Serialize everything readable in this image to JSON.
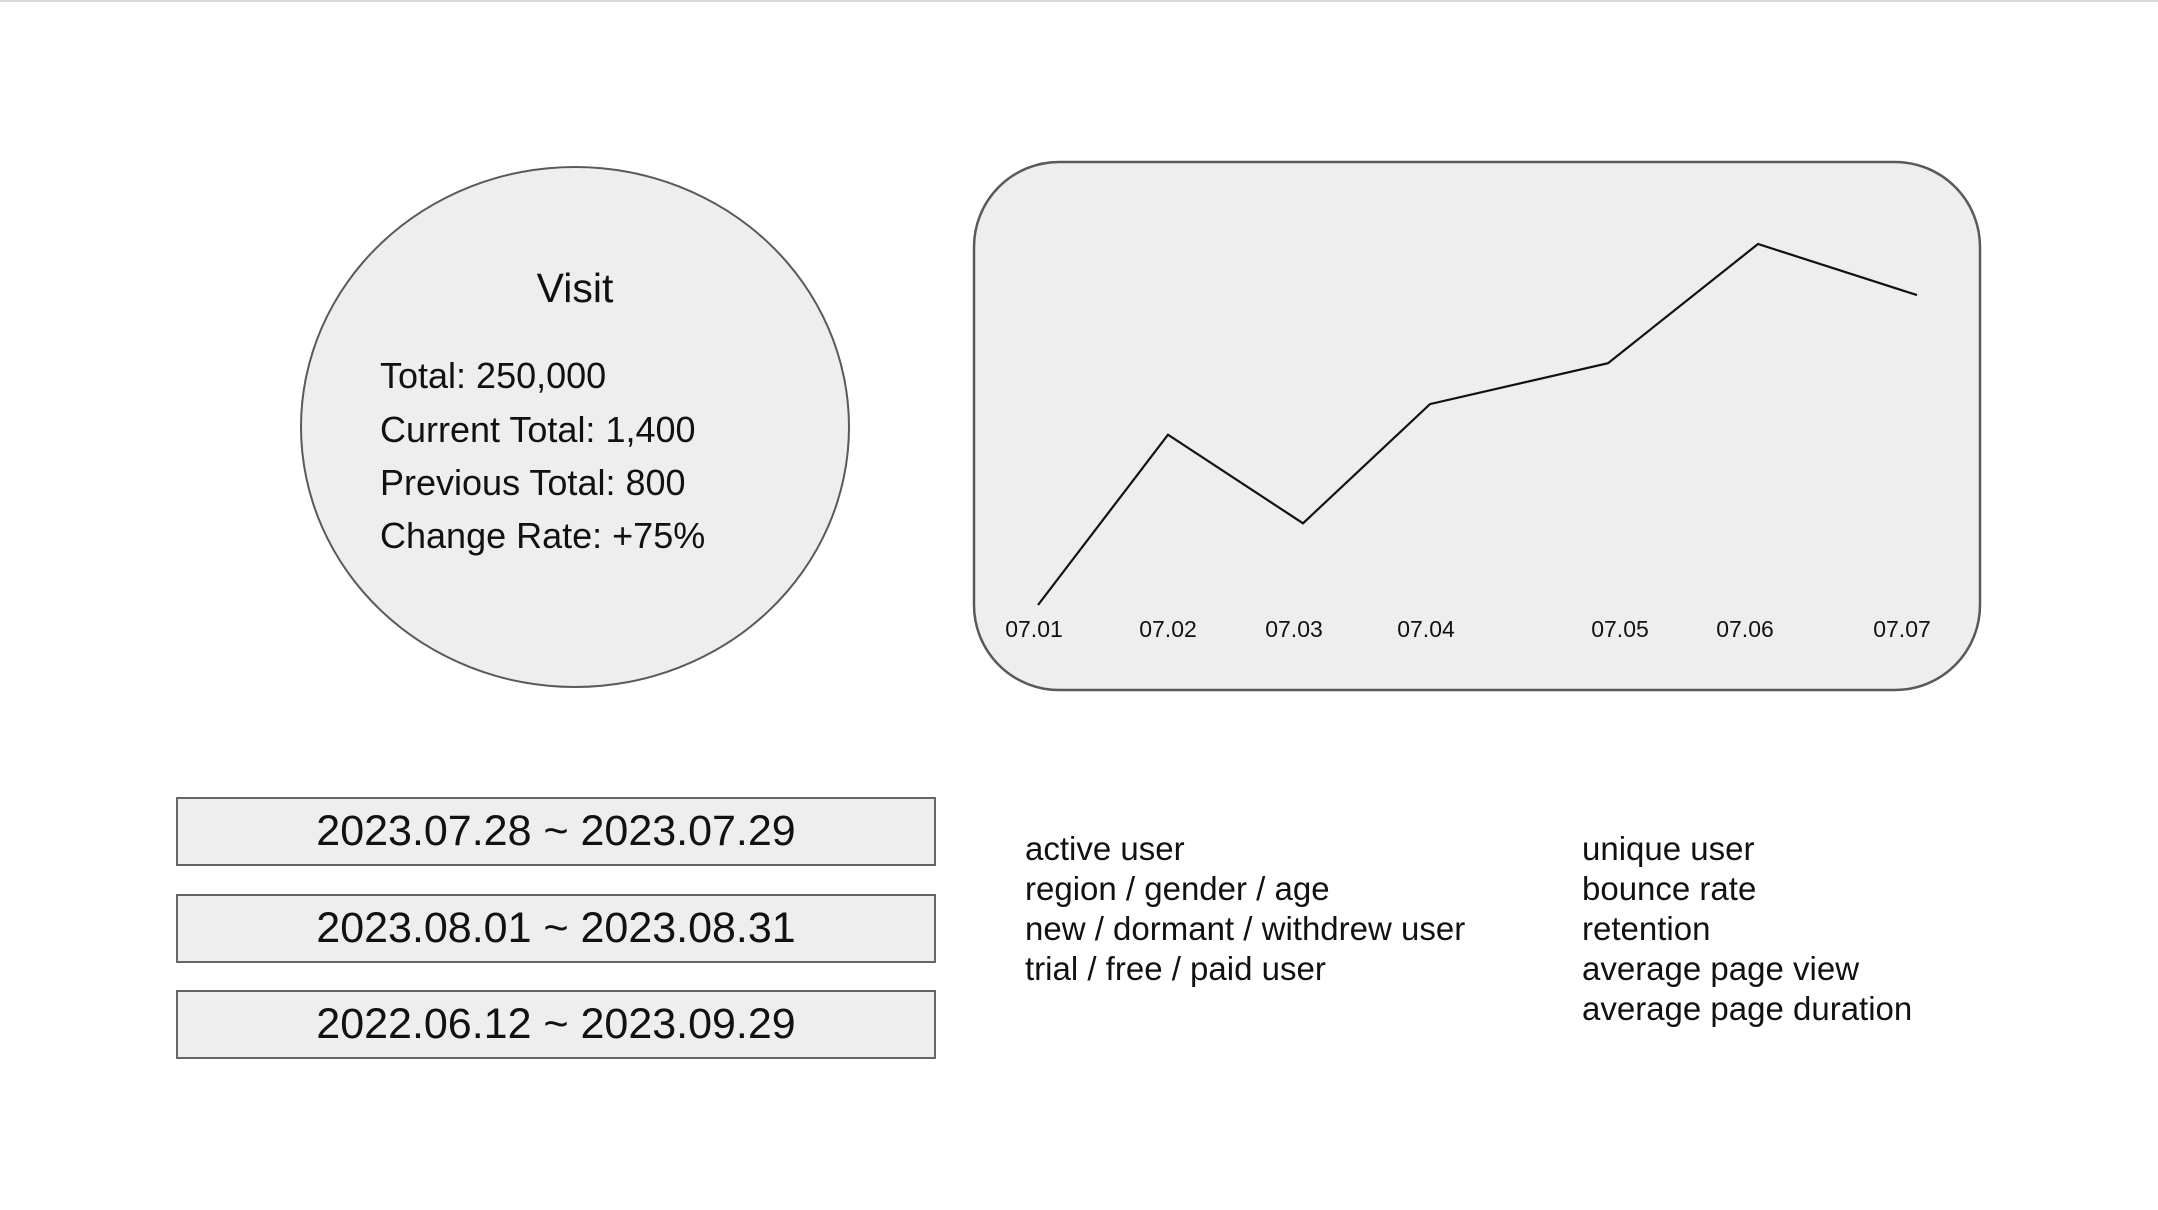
{
  "visit": {
    "title": "Visit",
    "lines": [
      "Total: 250,000",
      "Current Total: 1,400",
      "Previous Total: 800",
      "Change Rate: +75%"
    ]
  },
  "chart_data": {
    "type": "line",
    "x": [
      "07.01",
      "07.02",
      "07.03",
      "07.04",
      "07.05",
      "07.06",
      "07.07"
    ],
    "series": [
      {
        "values": [
          0,
          50,
          24,
          59,
          71,
          106,
          91
        ]
      }
    ],
    "ylim": [
      0,
      106
    ],
    "grid": false,
    "legend": "none",
    "title": "",
    "xlabel": "",
    "ylabel": ""
  },
  "date_ranges": [
    "2023.07.28 ~ 2023.07.29",
    "2023.08.01 ~ 2023.08.31",
    "2022.06.12 ~ 2023.09.29"
  ],
  "metrics_left": [
    "active user",
    "region / gender / age",
    "new / dormant / withdrew user",
    "trial / free / paid user"
  ],
  "metrics_right": [
    "unique user",
    "bounce rate",
    "retention",
    "average page view",
    "average page duration"
  ]
}
